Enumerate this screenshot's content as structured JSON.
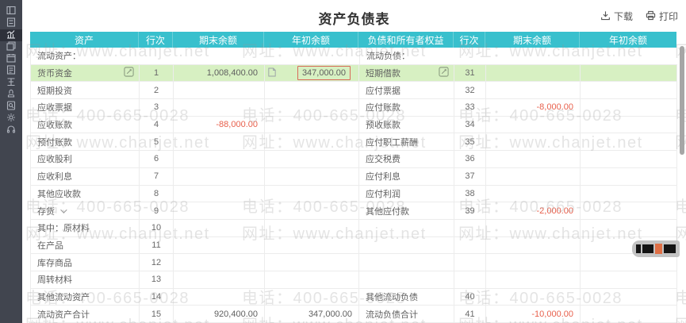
{
  "header": {
    "title": "资产负债表",
    "download_label": "下载",
    "print_label": "打印"
  },
  "watermark": {
    "line1": "电话：400-665-0028",
    "line2": "网址：www.chanjet.net"
  },
  "sidebar": {
    "icons": [
      "dashboard",
      "voucher",
      "reports",
      "ledger",
      "checkout",
      "invoice",
      "salary",
      "assets",
      "audit",
      "settings",
      "support"
    ]
  },
  "colors": {
    "accent_teal": "#38c0cd",
    "highlight_green": "#d7f0c2",
    "negative_red": "#e8604c",
    "red_box_border": "#d96a5a",
    "sidebar_bg": "#41454f"
  },
  "table": {
    "columns": [
      "资产",
      "行次",
      "期末余额",
      "年初余额",
      "负债和所有者权益",
      "行次",
      "期末余额",
      "年初余额"
    ],
    "section": {
      "left": "流动资产：",
      "right": "流动负债："
    },
    "rows": [
      {
        "l": "货币资金",
        "ln": "1",
        "le": "1,008,400.00",
        "lb": "347,000.00",
        "r": "短期借款",
        "rn": "31",
        "re": "",
        "rb": ""
      },
      {
        "l": "短期投资",
        "ln": "2",
        "le": "",
        "lb": "",
        "r": "应付票据",
        "rn": "32",
        "re": "",
        "rb": ""
      },
      {
        "l": "应收票据",
        "ln": "3",
        "le": "",
        "lb": "",
        "r": "应付账款",
        "rn": "33",
        "re": "-8,000.00",
        "rb": ""
      },
      {
        "l": "应收账款",
        "ln": "4",
        "le": "-88,000.00",
        "lb": "",
        "r": "预收账款",
        "rn": "34",
        "re": "",
        "rb": ""
      },
      {
        "l": "预付账款",
        "ln": "5",
        "le": "",
        "lb": "",
        "r": "应付职工薪酬",
        "rn": "35",
        "re": "",
        "rb": ""
      },
      {
        "l": "应收股利",
        "ln": "6",
        "le": "",
        "lb": "",
        "r": "应交税费",
        "rn": "36",
        "re": "",
        "rb": ""
      },
      {
        "l": "应收利息",
        "ln": "7",
        "le": "",
        "lb": "",
        "r": "应付利息",
        "rn": "37",
        "re": "",
        "rb": ""
      },
      {
        "l": "其他应收款",
        "ln": "8",
        "le": "",
        "lb": "",
        "r": "应付利润",
        "rn": "38",
        "re": "",
        "rb": ""
      },
      {
        "l": "存货",
        "ln": "9",
        "le": "",
        "lb": "",
        "r": "其他应付款",
        "rn": "39",
        "re": "-2,000.00",
        "rb": ""
      },
      {
        "l": "其中：原材料",
        "ln": "10",
        "le": "",
        "lb": "",
        "r": "",
        "rn": "",
        "re": "",
        "rb": ""
      },
      {
        "l": "在产品",
        "ln": "11",
        "le": "",
        "lb": "",
        "r": "",
        "rn": "",
        "re": "",
        "rb": ""
      },
      {
        "l": "库存商品",
        "ln": "12",
        "le": "",
        "lb": "",
        "r": "",
        "rn": "",
        "re": "",
        "rb": ""
      },
      {
        "l": "周转材料",
        "ln": "13",
        "le": "",
        "lb": "",
        "r": "",
        "rn": "",
        "re": "",
        "rb": ""
      },
      {
        "l": "其他流动资产",
        "ln": "14",
        "le": "",
        "lb": "",
        "r": "其他流动负债",
        "rn": "40",
        "re": "",
        "rb": ""
      },
      {
        "l": "流动资产合计",
        "ln": "15",
        "le": "920,400.00",
        "lb": "347,000.00",
        "r": "流动负债合计",
        "rn": "41",
        "re": "-10,000.00",
        "rb": ""
      }
    ]
  }
}
